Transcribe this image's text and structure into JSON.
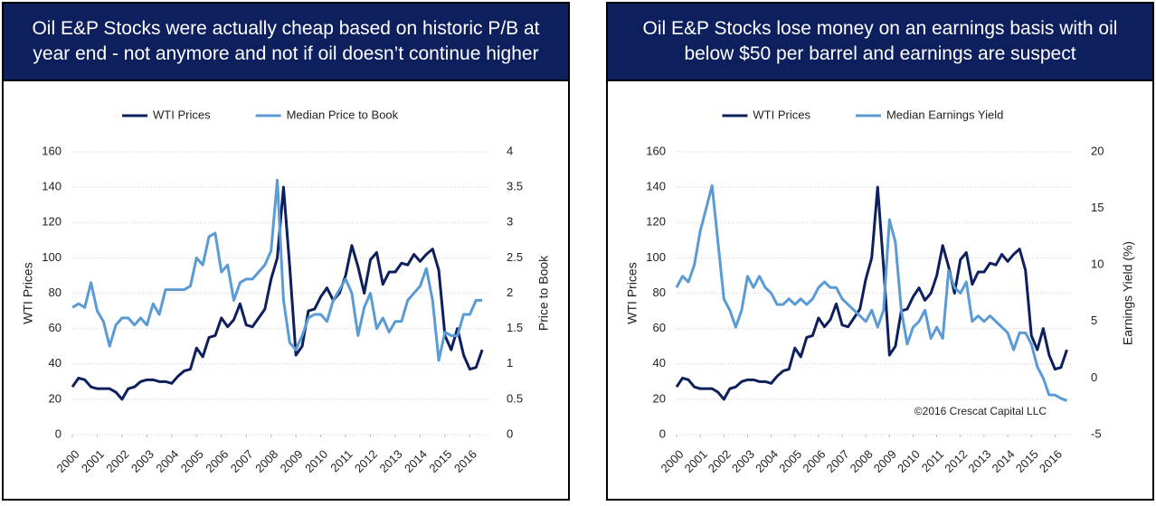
{
  "chart_data": [
    {
      "type": "line",
      "title": "Oil E&P Stocks were actually cheap based on historic P/B at year end - not anymore and not if oil doesn’t continue higher",
      "ylabel": "WTI Prices",
      "y2label": "Price to Book",
      "x": [
        2000,
        2000.25,
        2000.5,
        2000.75,
        2001,
        2001.25,
        2001.5,
        2001.75,
        2002,
        2002.25,
        2002.5,
        2002.75,
        2003,
        2003.25,
        2003.5,
        2003.75,
        2004,
        2004.25,
        2004.5,
        2004.75,
        2005,
        2005.25,
        2005.5,
        2005.75,
        2006,
        2006.25,
        2006.5,
        2006.75,
        2007,
        2007.25,
        2007.5,
        2007.75,
        2008,
        2008.25,
        2008.5,
        2008.75,
        2009,
        2009.25,
        2009.5,
        2009.75,
        2010,
        2010.25,
        2010.5,
        2010.75,
        2011,
        2011.25,
        2011.5,
        2011.75,
        2012,
        2012.25,
        2012.5,
        2012.75,
        2013,
        2013.25,
        2013.5,
        2013.75,
        2014,
        2014.25,
        2014.5,
        2014.75,
        2015,
        2015.25,
        2015.5,
        2015.75,
        2016,
        2016.25,
        2016.5
      ],
      "series": [
        {
          "name": "WTI Prices",
          "color": "#0d1f5c",
          "values": [
            27,
            32,
            31,
            27,
            26,
            26,
            26,
            24,
            20,
            26,
            27,
            30,
            31,
            31,
            30,
            30,
            29,
            33,
            36,
            37,
            49,
            44,
            55,
            56,
            66,
            61,
            65,
            74,
            62,
            61,
            66,
            71,
            88,
            100,
            140,
            95,
            45,
            50,
            70,
            71,
            78,
            83,
            76,
            80,
            90,
            107,
            95,
            80,
            99,
            103,
            85,
            92,
            92,
            97,
            96,
            102,
            98,
            102,
            105,
            93,
            56,
            48,
            60,
            45,
            37,
            38,
            48
          ]
        },
        {
          "name": "Median Price to Book",
          "color": "#5b9bd5",
          "axis": "y2",
          "values": [
            1.8,
            1.85,
            1.8,
            2.15,
            1.75,
            1.6,
            1.25,
            1.55,
            1.65,
            1.65,
            1.55,
            1.65,
            1.55,
            1.85,
            1.7,
            2.05,
            2.05,
            2.05,
            2.05,
            2.1,
            2.5,
            2.4,
            2.8,
            2.85,
            2.3,
            2.4,
            1.9,
            2.15,
            2.2,
            2.2,
            2.3,
            2.4,
            2.6,
            3.6,
            1.9,
            1.3,
            1.2,
            1.4,
            1.65,
            1.7,
            1.7,
            1.6,
            1.9,
            2.05,
            2.2,
            2.0,
            1.4,
            1.8,
            2.0,
            1.5,
            1.65,
            1.45,
            1.6,
            1.6,
            1.9,
            2.0,
            2.1,
            2.35,
            1.9,
            1.05,
            1.45,
            1.4,
            1.4,
            1.7,
            1.7,
            1.9,
            1.9
          ]
        }
      ],
      "xlim": [
        2000,
        2016.75
      ],
      "xticks": [
        2000,
        2001,
        2002,
        2003,
        2004,
        2005,
        2006,
        2007,
        2008,
        2009,
        2010,
        2011,
        2012,
        2013,
        2014,
        2015,
        2016
      ],
      "ylim": [
        0,
        160
      ],
      "yticks": [
        0,
        20,
        40,
        60,
        80,
        100,
        120,
        140,
        160
      ],
      "y2lim": [
        0,
        4
      ],
      "y2ticks": [
        0,
        0.5,
        1,
        1.5,
        2,
        2.5,
        3,
        3.5,
        4
      ],
      "grid": true
    },
    {
      "type": "line",
      "title": "Oil E&P Stocks lose money on an earnings basis with oil below $50 per barrel and earnings are suspect",
      "ylabel": "WTI Prices",
      "y2label": "Earnings Yield (%)",
      "annotation": "©2016 Crescat Capital LLC",
      "x": [
        2000,
        2000.25,
        2000.5,
        2000.75,
        2001,
        2001.25,
        2001.5,
        2001.75,
        2002,
        2002.25,
        2002.5,
        2002.75,
        2003,
        2003.25,
        2003.5,
        2003.75,
        2004,
        2004.25,
        2004.5,
        2004.75,
        2005,
        2005.25,
        2005.5,
        2005.75,
        2006,
        2006.25,
        2006.5,
        2006.75,
        2007,
        2007.25,
        2007.5,
        2007.75,
        2008,
        2008.25,
        2008.5,
        2008.75,
        2009,
        2009.25,
        2009.5,
        2009.75,
        2010,
        2010.25,
        2010.5,
        2010.75,
        2011,
        2011.25,
        2011.5,
        2011.75,
        2012,
        2012.25,
        2012.5,
        2012.75,
        2013,
        2013.25,
        2013.5,
        2013.75,
        2014,
        2014.25,
        2014.5,
        2014.75,
        2015,
        2015.25,
        2015.5,
        2015.75,
        2016,
        2016.25,
        2016.5
      ],
      "series": [
        {
          "name": "WTI Prices",
          "color": "#0d1f5c",
          "values": [
            27,
            32,
            31,
            27,
            26,
            26,
            26,
            24,
            20,
            26,
            27,
            30,
            31,
            31,
            30,
            30,
            29,
            33,
            36,
            37,
            49,
            44,
            55,
            56,
            66,
            61,
            65,
            74,
            62,
            61,
            66,
            71,
            88,
            100,
            140,
            95,
            45,
            50,
            70,
            71,
            78,
            83,
            76,
            80,
            90,
            107,
            95,
            80,
            99,
            103,
            85,
            92,
            92,
            97,
            96,
            102,
            98,
            102,
            105,
            93,
            56,
            48,
            60,
            45,
            37,
            38,
            48
          ]
        },
        {
          "name": "Median Earnings Yield",
          "color": "#5b9bd5",
          "axis": "y2",
          "values": [
            8,
            9,
            8.5,
            10,
            13,
            15,
            17,
            12,
            7,
            6,
            4.5,
            6,
            9,
            8,
            9,
            8,
            7.5,
            6.5,
            6.5,
            7,
            6.5,
            7,
            6.5,
            7,
            8,
            8.5,
            8,
            8,
            7,
            6.5,
            6,
            5.5,
            5,
            6,
            4.5,
            6,
            14,
            12,
            6,
            3,
            4.5,
            5,
            6,
            3.5,
            4.5,
            3.5,
            9.5,
            8,
            7.5,
            8.5,
            5,
            5.5,
            5,
            5.5,
            5,
            4.5,
            4,
            2.5,
            4,
            4,
            3,
            1,
            0,
            -1.5,
            -1.5,
            -1.8,
            -2
          ]
        }
      ],
      "xlim": [
        2000,
        2016.75
      ],
      "xticks": [
        2000,
        2001,
        2002,
        2003,
        2004,
        2005,
        2006,
        2007,
        2008,
        2009,
        2010,
        2011,
        2012,
        2013,
        2014,
        2015,
        2016
      ],
      "ylim": [
        0,
        160
      ],
      "yticks": [
        0,
        20,
        40,
        60,
        80,
        100,
        120,
        140,
        160
      ],
      "y2lim": [
        -5,
        20
      ],
      "y2ticks": [
        -5,
        0,
        5,
        10,
        15,
        20
      ],
      "grid": true
    }
  ]
}
